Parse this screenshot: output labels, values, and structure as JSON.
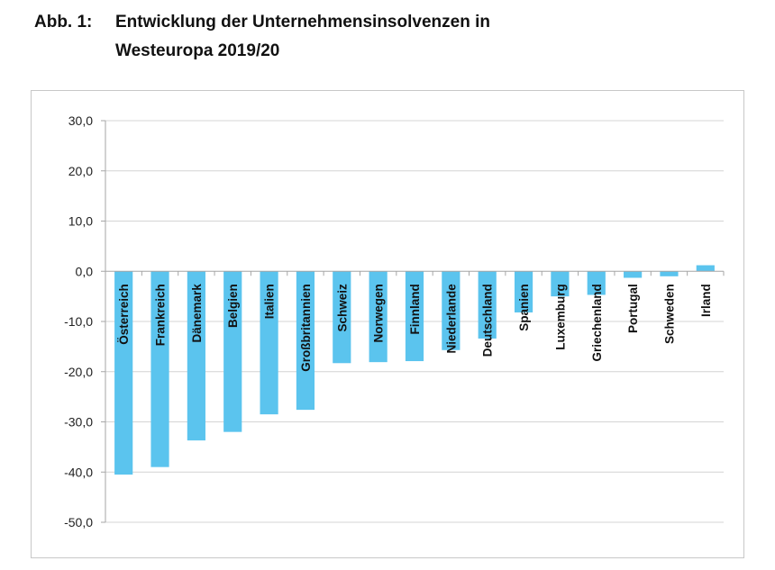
{
  "figure": {
    "label": "Abb. 1:",
    "title_line1": "Entwicklung der Unternehmensinsolvenzen in",
    "title_line2": "Westeuropa 2019/20"
  },
  "chart_data": {
    "type": "bar",
    "title": "Entwicklung der Unternehmensinsolvenzen in Westeuropa 2019/20",
    "xlabel": "",
    "ylabel": "",
    "ylim": [
      -50,
      30
    ],
    "yticks": [
      30,
      20,
      10,
      0,
      -10,
      -20,
      -30,
      -40,
      -50
    ],
    "ytick_labels": [
      "30,0",
      "20,0",
      "10,0",
      "0,0",
      "-10,0",
      "-20,0",
      "-30,0",
      "-40,0",
      "-50,0"
    ],
    "grid": true,
    "legend": "none",
    "bar_color": "#5bc4ee",
    "categories": [
      "Österreich",
      "Frankreich",
      "Dänemark",
      "Belgien",
      "Italien",
      "Großbritannien",
      "Schweiz",
      "Norwegen",
      "Finnland",
      "Niederlande",
      "Deutschland",
      "Spanien",
      "Luxemburg",
      "Griechenland",
      "Portugal",
      "Schweden",
      "Irland"
    ],
    "values": [
      -40.5,
      -39.0,
      -33.7,
      -32.0,
      -28.5,
      -27.6,
      -18.3,
      -18.1,
      -17.9,
      -15.7,
      -13.4,
      -8.2,
      -5.0,
      -4.7,
      -1.3,
      -1.0,
      1.2
    ]
  }
}
